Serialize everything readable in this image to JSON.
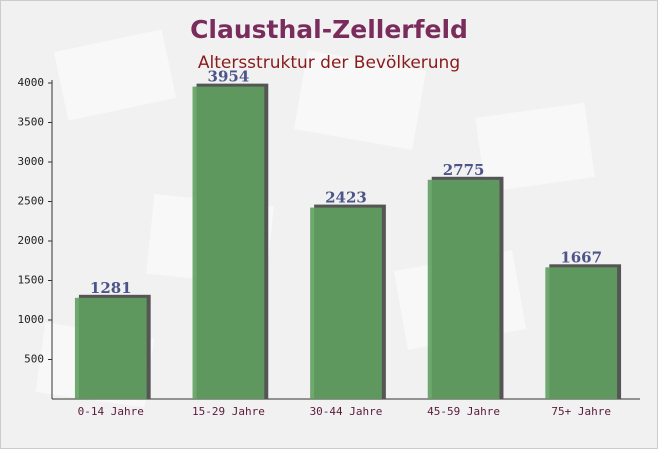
{
  "chart_data": {
    "type": "bar",
    "title": "Clausthal-Zellerfeld",
    "subtitle": "Altersstruktur der Bevölkerung",
    "categories": [
      "0-14 Jahre",
      "15-29 Jahre",
      "30-44 Jahre",
      "45-59 Jahre",
      "75+ Jahre"
    ],
    "values": [
      1281,
      3954,
      2423,
      2775,
      1667
    ],
    "color": "#5fa05f",
    "ylim": [
      0,
      4000
    ],
    "yticks": [
      500,
      1000,
      1500,
      2000,
      2500,
      3000,
      3500,
      4000
    ],
    "grid": false
  }
}
